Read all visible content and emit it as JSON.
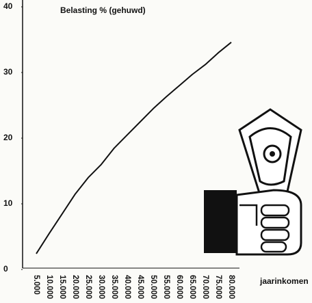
{
  "chart_data": {
    "type": "line",
    "title": "Belasting % (gehuwd)",
    "x_label": "jaarinkomen",
    "categories": [
      "5.000",
      "10.000",
      "15.000",
      "20.000",
      "25.000",
      "30.000",
      "35.000",
      "40.000",
      "45.000",
      "50.000",
      "55.000",
      "60.000",
      "65.000",
      "70.000",
      "75.000",
      "80.000"
    ],
    "values": [
      2.4,
      5.5,
      8.5,
      11.5,
      14,
      16,
      18.5,
      20.5,
      22.5,
      24.5,
      26.3,
      28,
      29.7,
      31.2,
      33,
      34.6
    ],
    "color": "#111111",
    "ylim": [
      0,
      40
    ],
    "yticks": [
      0,
      10,
      20,
      30,
      40
    ],
    "grid": false
  }
}
